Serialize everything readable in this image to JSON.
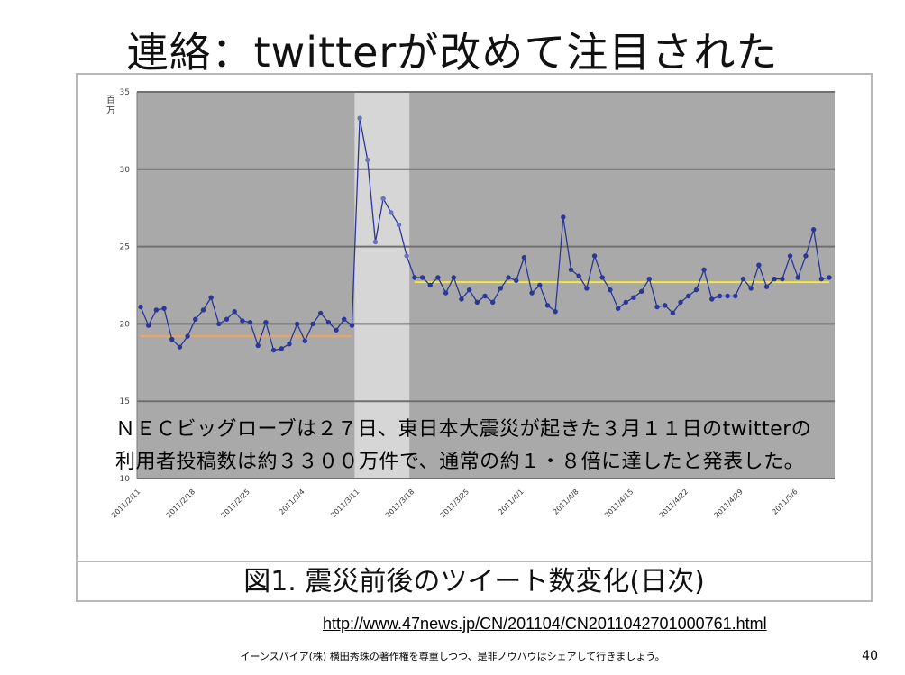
{
  "slide": {
    "title": "連絡：twitterが改めて注目された",
    "overlay_line1": "ＮＥＣビッグローブは２７日、東日本大震災が起きた３月１１日のtwitterの",
    "overlay_line2": "利用者投稿数は約３３００万件で、通常の約１・８倍に達したと発表した。",
    "source_url": "http://www.47news.jp/CN/201104/CN2011042701000761.html",
    "footer": "イーンスパイア(株) 横田秀珠の著作権を尊重しつつ、是非ノウハウはシェアして行きましょう。",
    "page_number": "40"
  },
  "chart_data": {
    "type": "line",
    "title": "図1. 震災前後のツイート数変化(日次)",
    "xlabel": "",
    "ylabel": "百万",
    "ylim": [
      10,
      35
    ],
    "y_ticks": [
      10,
      15,
      20,
      25,
      30,
      35
    ],
    "x_tick_labels": [
      "2011/2/11",
      "2011/2/18",
      "2011/2/25",
      "2011/3/4",
      "2011/3/11",
      "2011/3/18",
      "2011/3/25",
      "2011/4/1",
      "2011/4/8",
      "2011/4/15",
      "2011/4/22",
      "2011/4/29",
      "2011/5/6"
    ],
    "x": [
      "2011/2/11",
      "2011/2/12",
      "2011/2/13",
      "2011/2/14",
      "2011/2/15",
      "2011/2/16",
      "2011/2/17",
      "2011/2/18",
      "2011/2/19",
      "2011/2/20",
      "2011/2/21",
      "2011/2/22",
      "2011/2/23",
      "2011/2/24",
      "2011/2/25",
      "2011/2/26",
      "2011/2/27",
      "2011/2/28",
      "2011/3/1",
      "2011/3/2",
      "2011/3/3",
      "2011/3/4",
      "2011/3/5",
      "2011/3/6",
      "2011/3/7",
      "2011/3/8",
      "2011/3/9",
      "2011/3/10",
      "2011/3/11",
      "2011/3/12",
      "2011/3/13",
      "2011/3/14",
      "2011/3/15",
      "2011/3/16",
      "2011/3/17",
      "2011/3/18",
      "2011/3/19",
      "2011/3/20",
      "2011/3/21",
      "2011/3/22",
      "2011/3/23",
      "2011/3/24",
      "2011/3/25",
      "2011/3/26",
      "2011/3/27",
      "2011/3/28",
      "2011/3/29",
      "2011/3/30",
      "2011/3/31",
      "2011/4/1",
      "2011/4/2",
      "2011/4/3",
      "2011/4/4",
      "2011/4/5",
      "2011/4/6",
      "2011/4/7",
      "2011/4/8",
      "2011/4/9",
      "2011/4/10",
      "2011/4/11",
      "2011/4/12",
      "2011/4/13",
      "2011/4/14",
      "2011/4/15",
      "2011/4/16",
      "2011/4/17",
      "2011/4/18",
      "2011/4/19",
      "2011/4/20",
      "2011/4/21",
      "2011/4/22",
      "2011/4/23",
      "2011/4/24",
      "2011/4/25",
      "2011/4/26",
      "2011/4/27",
      "2011/4/28",
      "2011/4/29",
      "2011/4/30",
      "2011/5/1",
      "2011/5/2",
      "2011/5/3",
      "2011/5/4",
      "2011/5/5",
      "2011/5/6",
      "2011/5/7",
      "2011/5/8",
      "2011/5/9",
      "2011/5/10"
    ],
    "series": [
      {
        "name": "",
        "color": "#2a3796",
        "values": [
          21.1,
          19.9,
          20.9,
          21.0,
          19.0,
          18.5,
          19.2,
          20.3,
          20.9,
          21.7,
          20.0,
          20.3,
          20.8,
          20.2,
          20.1,
          18.6,
          20.1,
          18.3,
          18.4,
          18.7,
          20.0,
          18.9,
          20.0,
          20.7,
          20.1,
          19.6,
          20.3,
          19.9,
          33.3,
          30.6,
          25.3,
          28.1,
          27.2,
          26.4,
          24.4,
          23.0,
          23.0,
          22.5,
          23.0,
          22.0,
          23.0,
          21.6,
          22.2,
          21.4,
          21.8,
          21.4,
          22.3,
          23.0,
          22.8,
          24.3,
          22.0,
          22.5,
          21.2,
          20.8,
          26.9,
          23.5,
          23.1,
          22.3,
          24.4,
          23.0,
          22.2,
          21.0,
          21.4,
          21.7,
          22.1,
          22.9,
          21.1,
          21.2,
          20.7,
          21.4,
          21.8,
          22.2,
          23.5,
          21.6,
          21.8,
          21.8,
          21.8,
          22.9,
          22.3,
          23.8,
          22.4,
          22.9,
          22.9,
          24.4,
          23.0,
          24.4,
          26.1,
          22.9,
          23.0
        ]
      }
    ],
    "reference_lines": [
      {
        "value": 19.2,
        "color": "#f2a35c",
        "from": "2011/2/11",
        "to": "2011/3/10"
      },
      {
        "value": 22.7,
        "color": "#f5e83a",
        "from": "2011/3/18",
        "to": "2011/5/10"
      }
    ],
    "highlight_band": {
      "from": "2011/3/10",
      "to": "2011/3/17"
    },
    "colors": {
      "plot_background": "#a9a9a9",
      "highlight_background": "#d6d6d6",
      "gridline": "#707070"
    }
  }
}
